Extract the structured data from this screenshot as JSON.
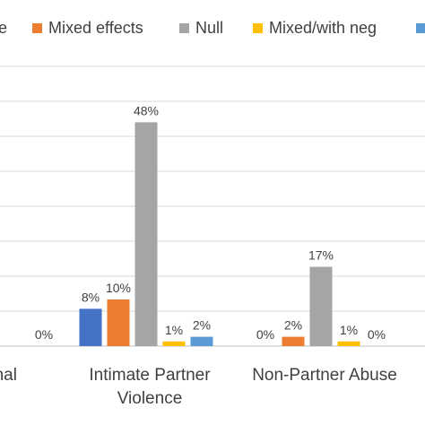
{
  "chart_data": {
    "type": "bar",
    "categories": [
      "onal",
      "Intimate Partner\nViolence",
      "Non-Partner Abuse"
    ],
    "series": [
      {
        "name": "e",
        "color": "#4472C4",
        "values": [
          null,
          8,
          0
        ],
        "labels": [
          "",
          "8%",
          "0%"
        ]
      },
      {
        "name": "Mixed effects",
        "color": "#ED7D31",
        "values": [
          null,
          10,
          2
        ],
        "labels": [
          "",
          "10%",
          "2%"
        ]
      },
      {
        "name": "Null",
        "color": "#A5A5A5",
        "values": [
          null,
          48,
          17
        ],
        "labels": [
          "",
          "48%",
          "17%"
        ]
      },
      {
        "name": "Mixed/with neg",
        "color": "#FFC000",
        "values": [
          null,
          1,
          1
        ],
        "labels": [
          "",
          "1%",
          "1%"
        ]
      },
      {
        "name": "",
        "color": "#5B9BD5",
        "values": [
          0,
          2,
          0
        ],
        "labels": [
          "0%",
          "2%",
          "0%"
        ]
      }
    ],
    "ylim": [
      0,
      60
    ],
    "grid": true,
    "legend_position": "top"
  }
}
